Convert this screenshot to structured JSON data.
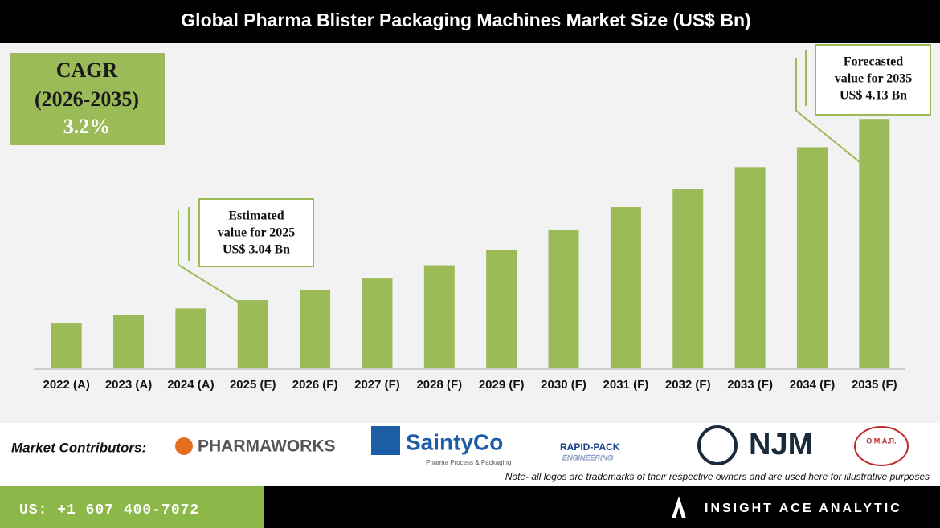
{
  "chart_data": {
    "type": "bar",
    "title": "Global Pharma Blister Packaging Machines Market Size (US$ Bn)",
    "categories": [
      "2022 (A)",
      "2023 (A)",
      "2024 (A)",
      "2025 (E)",
      "2026 (F)",
      "2027 (F)",
      "2028 (F)",
      "2029 (F)",
      "2030 (F)",
      "2031 (F)",
      "2032 (F)",
      "2033 (F)",
      "2034 (F)",
      "2035 (F)"
    ],
    "values": [
      2.9,
      2.95,
      2.99,
      3.04,
      3.1,
      3.17,
      3.25,
      3.34,
      3.46,
      3.6,
      3.71,
      3.84,
      3.96,
      4.13
    ],
    "color": "#9bbb59",
    "ylim": [
      2.63,
      4.58
    ],
    "cagr": {
      "label": "CAGR",
      "period": "(2026-2035)",
      "value": "3.2%"
    },
    "annotations": [
      {
        "lines": [
          "Estimated",
          "value for 2025",
          "US$ 3.04 Bn"
        ]
      },
      {
        "lines": [
          "Forecasted",
          "value for 2035",
          "US$ 4.13 Bn"
        ]
      }
    ]
  },
  "footer": {
    "contributors_label": "Market Contributors:",
    "logos": [
      "PHARMAWORKS",
      "SaintyCo",
      "Pharma Process & Packaging",
      "RAPID-PACK",
      "ENGINEERING",
      "NJM",
      "O.M.A.R."
    ],
    "note": "Note- all logos are trademarks of their respective owners and are used here for illustrative purposes",
    "phone": "US: +1 607 400-7072",
    "brand": "INSIGHT ACE ANALYTIC"
  }
}
